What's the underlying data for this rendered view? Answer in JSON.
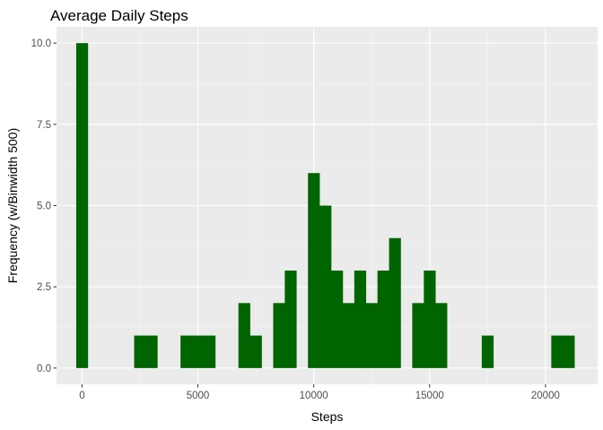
{
  "chart_data": {
    "type": "bar",
    "title": "Average Daily Steps",
    "xlabel": "Steps",
    "ylabel": "Frequency (w/Binwidth 500)",
    "binwidth": 500,
    "xlim": [
      -1100,
      22250
    ],
    "ylim": [
      -0.5,
      10.5
    ],
    "x_ticks": [
      0,
      5000,
      10000,
      15000,
      20000
    ],
    "x_tick_labels": [
      "0",
      "5000",
      "10000",
      "15000",
      "20000"
    ],
    "y_ticks": [
      0,
      2.5,
      5,
      7.5,
      10
    ],
    "y_tick_labels": [
      "0.0",
      "2.5",
      "5.0",
      "7.5",
      "10.0"
    ],
    "grid": true,
    "colors": {
      "bar": "#006400",
      "panel_background": "#ebebeb",
      "grid_major": "#ffffff",
      "grid_minor": "#f5f5f5",
      "tick_text": "#4d4d4d"
    },
    "bins": [
      {
        "x": 0,
        "count": 10
      },
      {
        "x": 2500,
        "count": 1
      },
      {
        "x": 3000,
        "count": 1
      },
      {
        "x": 4500,
        "count": 1
      },
      {
        "x": 5000,
        "count": 1
      },
      {
        "x": 5500,
        "count": 1
      },
      {
        "x": 7000,
        "count": 2
      },
      {
        "x": 7500,
        "count": 1
      },
      {
        "x": 8500,
        "count": 2
      },
      {
        "x": 9000,
        "count": 3
      },
      {
        "x": 10000,
        "count": 6
      },
      {
        "x": 10500,
        "count": 5
      },
      {
        "x": 11000,
        "count": 3
      },
      {
        "x": 11500,
        "count": 2
      },
      {
        "x": 12000,
        "count": 3
      },
      {
        "x": 12500,
        "count": 2
      },
      {
        "x": 13000,
        "count": 3
      },
      {
        "x": 13500,
        "count": 4
      },
      {
        "x": 14500,
        "count": 2
      },
      {
        "x": 15000,
        "count": 3
      },
      {
        "x": 15500,
        "count": 2
      },
      {
        "x": 17500,
        "count": 1
      },
      {
        "x": 20500,
        "count": 1
      },
      {
        "x": 21000,
        "count": 1
      }
    ]
  }
}
